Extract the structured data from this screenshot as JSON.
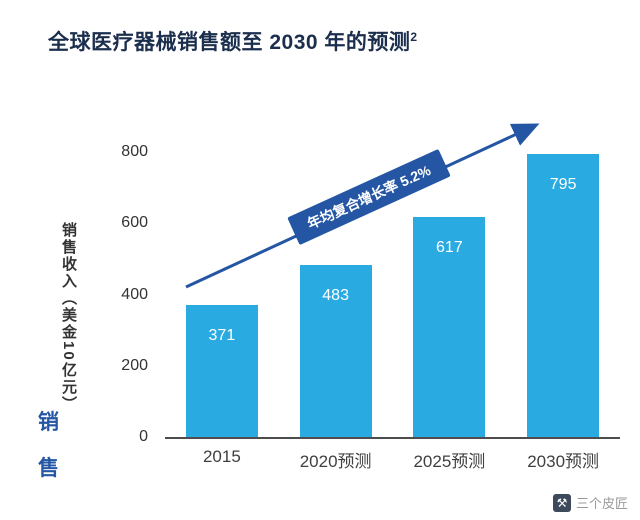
{
  "page": {
    "title": "全球医疗器械销售额至 2030 年的预测",
    "title_superscript": "2"
  },
  "chart_data": {
    "type": "bar",
    "title": "全球医疗器械销售额至 2030 年的预测 ²",
    "categories": [
      "2015",
      "2020预测",
      "2025预测",
      "2030预测"
    ],
    "values": [
      371,
      483,
      617,
      795
    ],
    "xlabel": "",
    "ylabel": "销售收入（美金10亿元）",
    "ylim": [
      0,
      800
    ],
    "yticks": [
      0,
      200,
      400,
      600,
      800
    ],
    "grid": false,
    "legend": "none",
    "bar_color": "#29abe2",
    "value_label_color": "#ffffff",
    "axis_text_color": "#333333",
    "annotation": {
      "text": "年均复合增长率 5.2%",
      "color": "#2456a4",
      "shape": "arrow-up-right"
    }
  },
  "edge_watermark": {
    "char1": "销",
    "char2": "售"
  },
  "watermark": {
    "text": "三个皮匠",
    "logo_glyph": "⚒"
  }
}
